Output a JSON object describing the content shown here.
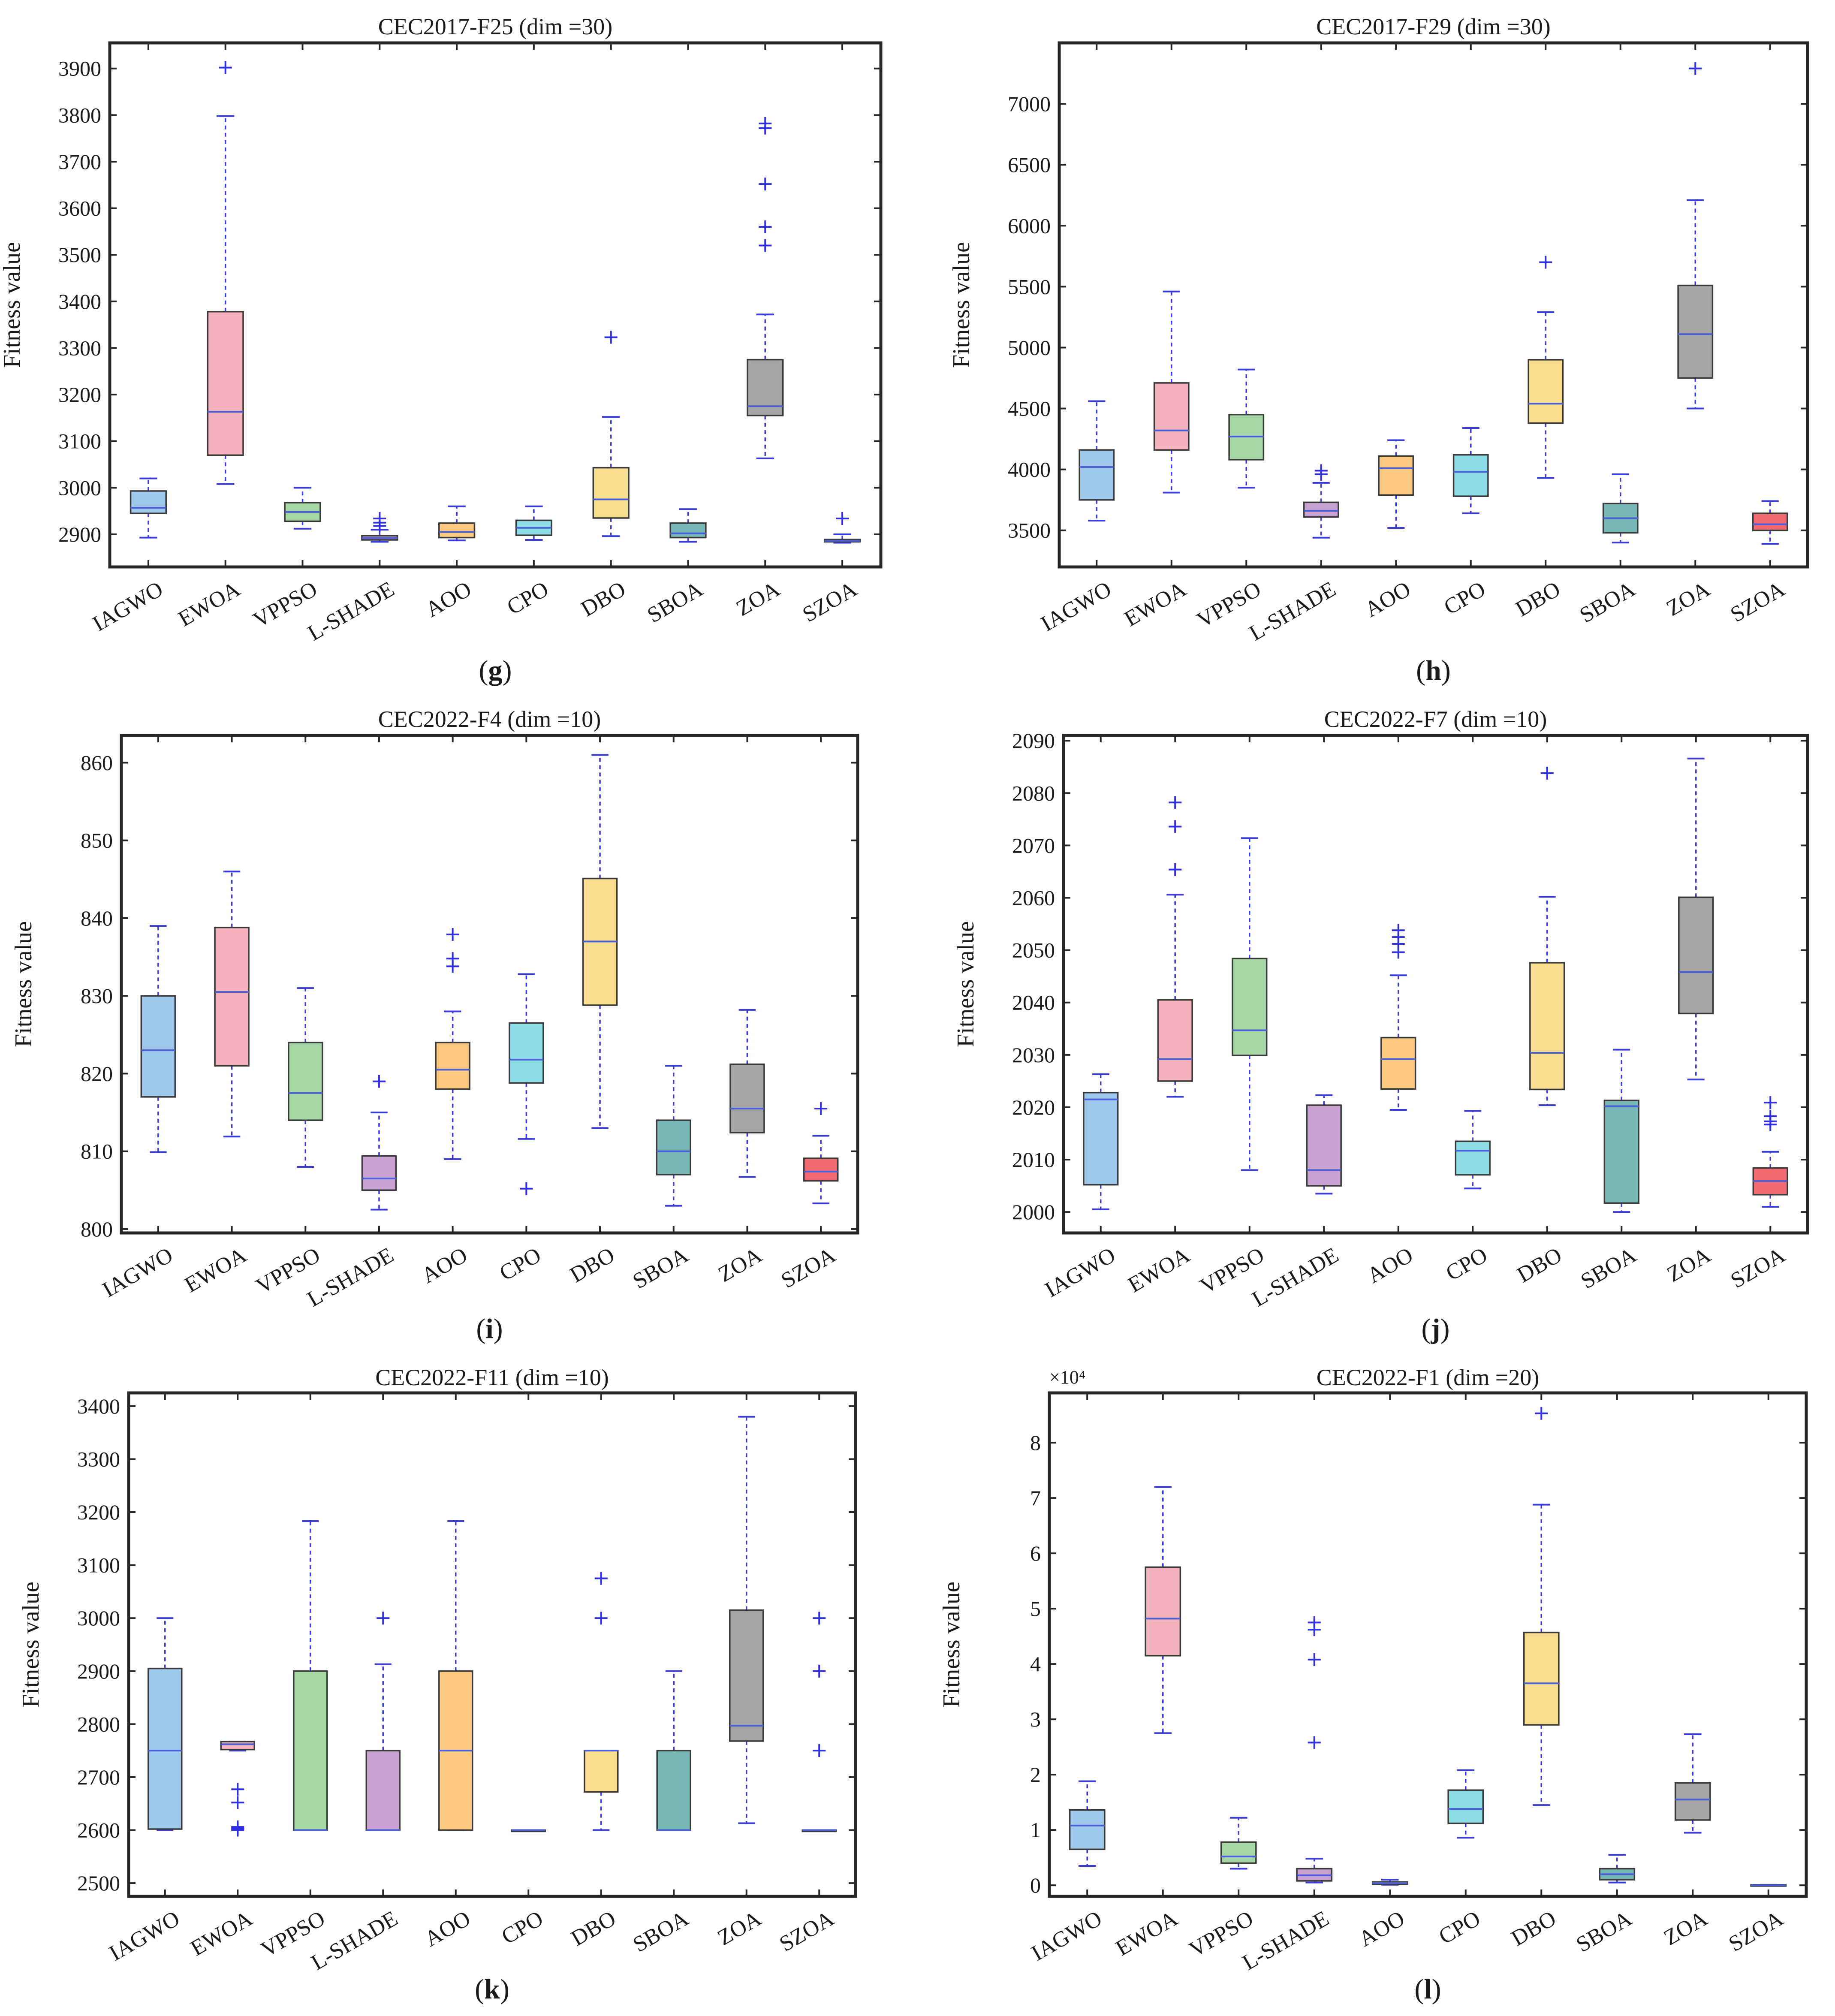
{
  "figure": {
    "categories": [
      "IAGWO",
      "EWOA",
      "VPPSO",
      "L-SHADE",
      "AOO",
      "CPO",
      "DBO",
      "SBOA",
      "ZOA",
      "SZOA"
    ],
    "colors": [
      "#9dc8ec",
      "#f5b3be",
      "#a6d8a6",
      "#caa2d2",
      "#fdc97f",
      "#8ddde6",
      "#f8dd8f",
      "#75b8b5",
      "#a5a5a5",
      "#f26a72"
    ],
    "median_color": "#4b5fd6",
    "whisker_color": "#3b3bd9",
    "outlier_color": "#2f2fe0"
  },
  "chart_data": [
    {
      "type": "box",
      "panel": "(g)",
      "title": "CEC2017-F25 (dim =30)",
      "ylabel": "Fitness value",
      "ylim": [
        2830,
        3955
      ],
      "yticks": [
        2900,
        3000,
        3100,
        3200,
        3300,
        3400,
        3500,
        3600,
        3700,
        3800,
        3900
      ],
      "multiplier": "",
      "boxes": [
        {
          "name": "IAGWO",
          "low": 2893,
          "q1": 2945,
          "median": 2957,
          "q3": 2993,
          "high": 3020,
          "outliers": []
        },
        {
          "name": "EWOA",
          "low": 3008,
          "q1": 3070,
          "median": 3163,
          "q3": 3378,
          "high": 3798,
          "outliers": [
            3902
          ]
        },
        {
          "name": "VPPSO",
          "low": 2912,
          "q1": 2928,
          "median": 2948,
          "q3": 2968,
          "high": 3000,
          "outliers": []
        },
        {
          "name": "L-SHADE",
          "low": 2884,
          "q1": 2888,
          "median": 2892,
          "q3": 2897,
          "high": 2910,
          "outliers": [
            2918,
            2925,
            2934
          ]
        },
        {
          "name": "AOO",
          "low": 2887,
          "q1": 2893,
          "median": 2905,
          "q3": 2924,
          "high": 2960,
          "outliers": []
        },
        {
          "name": "CPO",
          "low": 2888,
          "q1": 2898,
          "median": 2914,
          "q3": 2930,
          "high": 2960,
          "outliers": []
        },
        {
          "name": "DBO",
          "low": 2896,
          "q1": 2935,
          "median": 2975,
          "q3": 3043,
          "high": 3152,
          "outliers": [
            3323
          ]
        },
        {
          "name": "SBOA",
          "low": 2884,
          "q1": 2893,
          "median": 2902,
          "q3": 2924,
          "high": 2954,
          "outliers": []
        },
        {
          "name": "ZOA",
          "low": 3063,
          "q1": 3155,
          "median": 3175,
          "q3": 3275,
          "high": 3372,
          "outliers": [
            3520,
            3560,
            3652,
            3772,
            3782
          ]
        },
        {
          "name": "SZOA",
          "low": 2882,
          "q1": 2884,
          "median": 2886,
          "q3": 2889,
          "high": 2900,
          "outliers": [
            2934
          ]
        }
      ]
    },
    {
      "type": "box",
      "panel": "(h)",
      "title": "CEC2017-F29 (dim =30)",
      "ylabel": "Fitness value",
      "ylim": [
        3200,
        7500
      ],
      "yticks": [
        3500,
        4000,
        4500,
        5000,
        5500,
        6000,
        6500,
        7000
      ],
      "multiplier": "",
      "boxes": [
        {
          "name": "IAGWO",
          "low": 3580,
          "q1": 3750,
          "median": 4020,
          "q3": 4160,
          "high": 4560,
          "outliers": []
        },
        {
          "name": "EWOA",
          "low": 3810,
          "q1": 4160,
          "median": 4320,
          "q3": 4710,
          "high": 5460,
          "outliers": []
        },
        {
          "name": "VPPSO",
          "low": 3850,
          "q1": 4080,
          "median": 4270,
          "q3": 4450,
          "high": 4820,
          "outliers": []
        },
        {
          "name": "L-SHADE",
          "low": 3440,
          "q1": 3610,
          "median": 3660,
          "q3": 3730,
          "high": 3890,
          "outliers": [
            3960,
            3990
          ]
        },
        {
          "name": "AOO",
          "low": 3520,
          "q1": 3790,
          "median": 4010,
          "q3": 4110,
          "high": 4240,
          "outliers": []
        },
        {
          "name": "CPO",
          "low": 3640,
          "q1": 3780,
          "median": 3980,
          "q3": 4120,
          "high": 4340,
          "outliers": []
        },
        {
          "name": "DBO",
          "low": 3930,
          "q1": 4380,
          "median": 4540,
          "q3": 4900,
          "high": 5290,
          "outliers": [
            5700
          ]
        },
        {
          "name": "SBOA",
          "low": 3400,
          "q1": 3480,
          "median": 3600,
          "q3": 3720,
          "high": 3960,
          "outliers": []
        },
        {
          "name": "ZOA",
          "low": 4500,
          "q1": 4750,
          "median": 5110,
          "q3": 5510,
          "high": 6210,
          "outliers": [
            7290
          ]
        },
        {
          "name": "SZOA",
          "low": 3390,
          "q1": 3500,
          "median": 3550,
          "q3": 3640,
          "high": 3740,
          "outliers": []
        }
      ]
    },
    {
      "type": "box",
      "panel": "(i)",
      "title": "CEC2022-F4 (dim =10)",
      "ylabel": "Fitness value",
      "ylim": [
        799.5,
        863.5
      ],
      "yticks": [
        800,
        810,
        820,
        830,
        840,
        850,
        860
      ],
      "multiplier": "",
      "boxes": [
        {
          "name": "IAGWO",
          "low": 809.9,
          "q1": 817.0,
          "median": 823.0,
          "q3": 830.0,
          "high": 839.0,
          "outliers": []
        },
        {
          "name": "EWOA",
          "low": 811.9,
          "q1": 821.0,
          "median": 830.5,
          "q3": 838.8,
          "high": 846.0,
          "outliers": []
        },
        {
          "name": "VPPSO",
          "low": 808.0,
          "q1": 814.0,
          "median": 817.5,
          "q3": 824.0,
          "high": 831.0,
          "outliers": []
        },
        {
          "name": "L-SHADE",
          "low": 802.5,
          "q1": 805.0,
          "median": 806.5,
          "q3": 809.4,
          "high": 815.0,
          "outliers": [
            819.0
          ]
        },
        {
          "name": "AOO",
          "low": 809.0,
          "q1": 818.0,
          "median": 820.5,
          "q3": 824.0,
          "high": 828.0,
          "outliers": [
            833.8,
            834.8,
            837.9
          ]
        },
        {
          "name": "CPO",
          "low": 811.6,
          "q1": 818.8,
          "median": 821.8,
          "q3": 826.5,
          "high": 832.8,
          "outliers": [
            805.2
          ]
        },
        {
          "name": "DBO",
          "low": 813.0,
          "q1": 828.8,
          "median": 837.0,
          "q3": 845.1,
          "high": 861.0,
          "outliers": []
        },
        {
          "name": "SBOA",
          "low": 803.0,
          "q1": 807.0,
          "median": 810.0,
          "q3": 814.0,
          "high": 821.0,
          "outliers": []
        },
        {
          "name": "ZOA",
          "low": 806.7,
          "q1": 812.4,
          "median": 815.5,
          "q3": 821.2,
          "high": 828.2,
          "outliers": []
        },
        {
          "name": "SZOA",
          "low": 803.3,
          "q1": 806.2,
          "median": 807.4,
          "q3": 809.1,
          "high": 812.0,
          "outliers": [
            815.5
          ]
        }
      ]
    },
    {
      "type": "box",
      "panel": "(j)",
      "title": "CEC2022-F7 (dim =10)",
      "ylabel": "Fitness value",
      "ylim": [
        1996,
        2091
      ],
      "yticks": [
        2000,
        2010,
        2020,
        2030,
        2040,
        2050,
        2060,
        2070,
        2080,
        2090
      ],
      "multiplier": "",
      "boxes": [
        {
          "name": "IAGWO",
          "low": 2000.5,
          "q1": 2005.2,
          "median": 2021.5,
          "q3": 2022.8,
          "high": 2026.3,
          "outliers": []
        },
        {
          "name": "EWOA",
          "low": 2022.0,
          "q1": 2025.0,
          "median": 2029.2,
          "q3": 2040.5,
          "high": 2060.6,
          "outliers": [
            2065.4,
            2073.6,
            2078.2
          ]
        },
        {
          "name": "VPPSO",
          "low": 2008.0,
          "q1": 2029.9,
          "median": 2034.7,
          "q3": 2048.4,
          "high": 2071.4,
          "outliers": []
        },
        {
          "name": "L-SHADE",
          "low": 2003.5,
          "q1": 2005.0,
          "median": 2008.0,
          "q3": 2020.4,
          "high": 2022.3,
          "outliers": []
        },
        {
          "name": "AOO",
          "low": 2019.5,
          "q1": 2023.5,
          "median": 2029.2,
          "q3": 2033.3,
          "high": 2045.2,
          "outliers": [
            2049.6,
            2051.2,
            2052.5,
            2053.8
          ]
        },
        {
          "name": "CPO",
          "low": 2004.5,
          "q1": 2007.1,
          "median": 2011.7,
          "q3": 2013.5,
          "high": 2019.3,
          "outliers": []
        },
        {
          "name": "DBO",
          "low": 2020.4,
          "q1": 2023.4,
          "median": 2030.4,
          "q3": 2047.6,
          "high": 2060.2,
          "outliers": [
            2083.8
          ]
        },
        {
          "name": "SBOA",
          "low": 2000.0,
          "q1": 2001.7,
          "median": 2020.2,
          "q3": 2021.3,
          "high": 2031.0,
          "outliers": []
        },
        {
          "name": "ZOA",
          "low": 2025.3,
          "q1": 2037.9,
          "median": 2045.8,
          "q3": 2060.1,
          "high": 2086.6,
          "outliers": []
        },
        {
          "name": "SZOA",
          "low": 2001.0,
          "q1": 2003.3,
          "median": 2005.9,
          "q3": 2008.4,
          "high": 2011.5,
          "outliers": [
            2016.7,
            2017.3,
            2018.3,
            2020.9
          ]
        }
      ]
    },
    {
      "type": "box",
      "panel": "(k)",
      "title": "CEC2022-F11 (dim =10)",
      "ylabel": "Fitness value",
      "ylim": [
        2475,
        3425
      ],
      "yticks": [
        2500,
        2600,
        2700,
        2800,
        2900,
        3000,
        3100,
        3200,
        3300,
        3400
      ],
      "multiplier": "",
      "boxes": [
        {
          "name": "IAGWO",
          "low": 2600,
          "q1": 2602,
          "median": 2750,
          "q3": 2905,
          "high": 3000,
          "outliers": []
        },
        {
          "name": "EWOA",
          "low": 2750,
          "q1": 2752,
          "median": 2762,
          "q3": 2767,
          "high": 2767,
          "outliers": [
            2600,
            2602,
            2604,
            2606,
            2652,
            2677
          ]
        },
        {
          "name": "VPPSO",
          "low": 2600,
          "q1": 2600,
          "median": 2600,
          "q3": 2900,
          "high": 3183,
          "outliers": []
        },
        {
          "name": "L-SHADE",
          "low": 2600,
          "q1": 2600,
          "median": 2600,
          "q3": 2750,
          "high": 2913,
          "outliers": [
            3000
          ]
        },
        {
          "name": "AOO",
          "low": 2600,
          "q1": 2600,
          "median": 2750,
          "q3": 2900,
          "high": 3183,
          "outliers": []
        },
        {
          "name": "CPO",
          "low": 2600,
          "q1": 2600,
          "median": 2600,
          "q3": 2600,
          "high": 2600,
          "outliers": []
        },
        {
          "name": "DBO",
          "low": 2600,
          "q1": 2672,
          "median": 2750,
          "q3": 2750,
          "high": 2750,
          "outliers": [
            3000,
            3075
          ]
        },
        {
          "name": "SBOA",
          "low": 2600,
          "q1": 2600,
          "median": 2600,
          "q3": 2750,
          "high": 2900,
          "outliers": []
        },
        {
          "name": "ZOA",
          "low": 2613,
          "q1": 2768,
          "median": 2797,
          "q3": 3015,
          "high": 3380,
          "outliers": []
        },
        {
          "name": "SZOA",
          "low": 2600,
          "q1": 2600,
          "median": 2600,
          "q3": 2600,
          "high": 2600,
          "outliers": [
            2750,
            2900,
            3000
          ]
        }
      ]
    },
    {
      "type": "box",
      "panel": "(l)",
      "title": "CEC2022-F1 (dim =20)",
      "ylabel": "Fitness value",
      "ylim": [
        -0.2,
        8.9
      ],
      "yticks": [
        0,
        1,
        2,
        3,
        4,
        5,
        6,
        7,
        8
      ],
      "multiplier": "×10⁴",
      "boxes": [
        {
          "name": "IAGWO",
          "low": 0.35,
          "q1": 0.65,
          "median": 1.08,
          "q3": 1.36,
          "high": 1.88,
          "outliers": []
        },
        {
          "name": "EWOA",
          "low": 2.75,
          "q1": 4.15,
          "median": 4.82,
          "q3": 5.75,
          "high": 7.2,
          "outliers": []
        },
        {
          "name": "VPPSO",
          "low": 0.3,
          "q1": 0.4,
          "median": 0.52,
          "q3": 0.78,
          "high": 1.22,
          "outliers": []
        },
        {
          "name": "L-SHADE",
          "low": 0.05,
          "q1": 0.08,
          "median": 0.18,
          "q3": 0.3,
          "high": 0.48,
          "outliers": [
            2.58,
            4.08,
            4.62,
            4.75
          ]
        },
        {
          "name": "AOO",
          "low": 0.01,
          "q1": 0.02,
          "median": 0.04,
          "q3": 0.06,
          "high": 0.1,
          "outliers": []
        },
        {
          "name": "CPO",
          "low": 0.86,
          "q1": 1.12,
          "median": 1.38,
          "q3": 1.72,
          "high": 2.08,
          "outliers": []
        },
        {
          "name": "DBO",
          "low": 1.45,
          "q1": 2.9,
          "median": 3.65,
          "q3": 4.57,
          "high": 6.88,
          "outliers": [
            8.53
          ]
        },
        {
          "name": "SBOA",
          "low": 0.05,
          "q1": 0.1,
          "median": 0.2,
          "q3": 0.3,
          "high": 0.55,
          "outliers": []
        },
        {
          "name": "ZOA",
          "low": 0.95,
          "q1": 1.18,
          "median": 1.55,
          "q3": 1.85,
          "high": 2.73,
          "outliers": []
        },
        {
          "name": "SZOA",
          "low": 0.0,
          "q1": 0.0,
          "median": 0.0,
          "q3": 0.01,
          "high": 0.01,
          "outliers": []
        }
      ]
    }
  ]
}
